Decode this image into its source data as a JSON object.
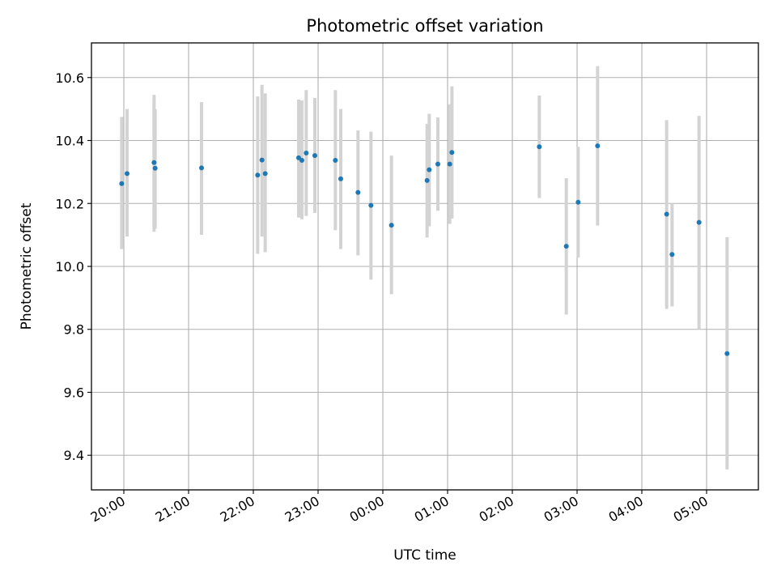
{
  "chart_data": {
    "type": "scatter",
    "title": "Photometric offset variation",
    "xlabel": "UTC time",
    "ylabel": "Photometric offset",
    "x_ticks": [
      "20:00",
      "21:00",
      "22:00",
      "23:00",
      "00:00",
      "01:00",
      "02:00",
      "03:00",
      "04:00",
      "05:00"
    ],
    "y_ticks": [
      "9.4",
      "9.6",
      "9.8",
      "10.0",
      "10.2",
      "10.4",
      "10.6"
    ],
    "xlim": [
      "19:30",
      "05:48"
    ],
    "ylim": [
      9.29,
      10.71
    ],
    "grid": true,
    "marker_color": "#1f77b4",
    "errorbar_color": "#d3d3d3",
    "points": [
      {
        "x": "19:58",
        "y": 10.263,
        "ylo": 10.055,
        "yhi": 10.475
      },
      {
        "x": "20:03",
        "y": 10.295,
        "ylo": 10.095,
        "yhi": 10.5
      },
      {
        "x": "20:28",
        "y": 10.33,
        "ylo": 10.11,
        "yhi": 10.545
      },
      {
        "x": "20:29",
        "y": 10.312,
        "ylo": 10.12,
        "yhi": 10.5
      },
      {
        "x": "21:12",
        "y": 10.313,
        "ylo": 10.1,
        "yhi": 10.522
      },
      {
        "x": "22:04",
        "y": 10.29,
        "ylo": 10.04,
        "yhi": 10.54
      },
      {
        "x": "22:08",
        "y": 10.338,
        "ylo": 10.095,
        "yhi": 10.577
      },
      {
        "x": "22:11",
        "y": 10.295,
        "ylo": 10.045,
        "yhi": 10.55
      },
      {
        "x": "22:42",
        "y": 10.345,
        "ylo": 10.155,
        "yhi": 10.53
      },
      {
        "x": "22:45",
        "y": 10.337,
        "ylo": 10.15,
        "yhi": 10.527
      },
      {
        "x": "22:49",
        "y": 10.36,
        "ylo": 10.16,
        "yhi": 10.56
      },
      {
        "x": "22:57",
        "y": 10.352,
        "ylo": 10.17,
        "yhi": 10.535
      },
      {
        "x": "23:16",
        "y": 10.337,
        "ylo": 10.115,
        "yhi": 10.56
      },
      {
        "x": "23:21",
        "y": 10.278,
        "ylo": 10.055,
        "yhi": 10.5
      },
      {
        "x": "23:37",
        "y": 10.235,
        "ylo": 10.035,
        "yhi": 10.432
      },
      {
        "x": "23:49",
        "y": 10.194,
        "ylo": 9.958,
        "yhi": 10.428
      },
      {
        "x": "00:08",
        "y": 10.131,
        "ylo": 9.912,
        "yhi": 10.352
      },
      {
        "x": "00:41",
        "y": 10.273,
        "ylo": 10.092,
        "yhi": 10.453
      },
      {
        "x": "00:43",
        "y": 10.307,
        "ylo": 10.127,
        "yhi": 10.485
      },
      {
        "x": "00:51",
        "y": 10.325,
        "ylo": 10.177,
        "yhi": 10.473
      },
      {
        "x": "01:02",
        "y": 10.325,
        "ylo": 10.135,
        "yhi": 10.515
      },
      {
        "x": "01:04",
        "y": 10.362,
        "ylo": 10.152,
        "yhi": 10.572
      },
      {
        "x": "02:25",
        "y": 10.38,
        "ylo": 10.217,
        "yhi": 10.543
      },
      {
        "x": "02:50",
        "y": 10.064,
        "ylo": 9.847,
        "yhi": 10.28
      },
      {
        "x": "03:01",
        "y": 10.204,
        "ylo": 10.028,
        "yhi": 10.38
      },
      {
        "x": "03:19",
        "y": 10.383,
        "ylo": 10.13,
        "yhi": 10.636
      },
      {
        "x": "04:23",
        "y": 10.166,
        "ylo": 9.865,
        "yhi": 10.465
      },
      {
        "x": "04:28",
        "y": 10.038,
        "ylo": 9.873,
        "yhi": 10.2
      },
      {
        "x": "04:53",
        "y": 10.14,
        "ylo": 9.8,
        "yhi": 10.478
      },
      {
        "x": "05:19",
        "y": 9.723,
        "ylo": 9.355,
        "yhi": 10.093
      }
    ]
  }
}
